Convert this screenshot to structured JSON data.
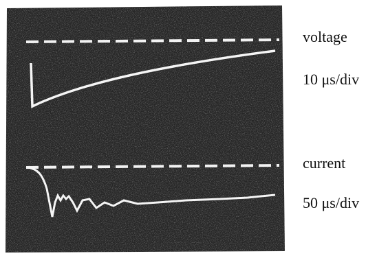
{
  "labels": {
    "top_trace": "voltage",
    "top_timebase": "10 μs/div",
    "bottom_trace": "current",
    "bottom_timebase": "50 μs/div"
  }
}
